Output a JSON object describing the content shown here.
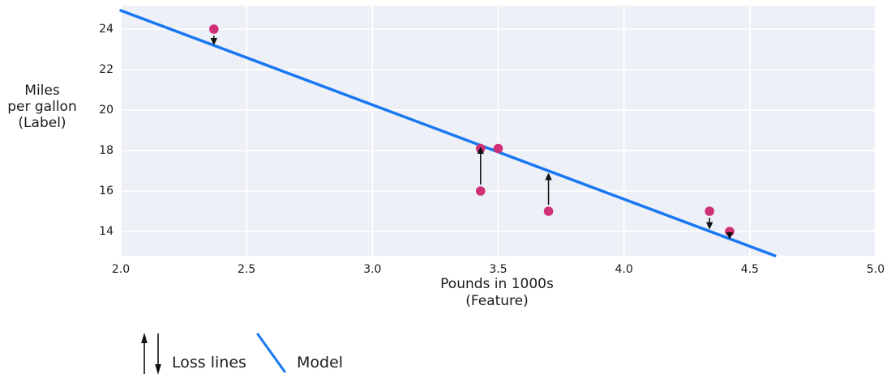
{
  "figure": {
    "ylabel_lines": [
      "Miles",
      "per gallon",
      "(Label)"
    ],
    "xlabel_lines": [
      "Pounds in 1000s",
      "(Feature)"
    ]
  },
  "legend": {
    "loss_label": "Loss lines",
    "model_label": "Model"
  },
  "colors": {
    "model_blue": "#1877f2",
    "point_pink": "#cf3076",
    "plot_bg": "#edf0f7",
    "grid": "#ffffff",
    "text": "#1b1b1b",
    "arrow": "#101010"
  },
  "chart_data": {
    "type": "scatter",
    "title": "",
    "xlabel": "Pounds in 1000s (Feature)",
    "ylabel": "Miles per gallon (Label)",
    "xlim": [
      2.0,
      5.0
    ],
    "ylim": [
      12.8,
      25.16
    ],
    "x_tick_values": [
      2.0,
      2.5,
      3.0,
      3.5,
      4.0,
      4.5,
      5.0
    ],
    "x_tick_labels": [
      "2.0",
      "2.5",
      "3.0",
      "3.5",
      "4.0",
      "4.5",
      "5.0"
    ],
    "y_tick_values": [
      14,
      16,
      18,
      20,
      22,
      24
    ],
    "y_tick_labels": [
      "14",
      "16",
      "18",
      "20",
      "22",
      "24"
    ],
    "grid": true,
    "legend_position": "below-left",
    "series": [
      {
        "name": "data points",
        "type": "scatter",
        "points": [
          [
            2.37,
            24.0
          ],
          [
            3.43,
            18.1
          ],
          [
            3.5,
            18.1
          ],
          [
            3.43,
            16.0
          ],
          [
            3.7,
            15.0
          ],
          [
            4.34,
            15.0
          ],
          [
            4.42,
            14.0
          ]
        ]
      },
      {
        "name": "Model",
        "type": "line",
        "slope": -4.66,
        "intercept": 34.25,
        "endpoints": [
          [
            2.0,
            24.92
          ],
          [
            4.6,
            12.8
          ]
        ]
      },
      {
        "name": "Loss lines",
        "type": "arrows",
        "arrows": [
          {
            "x": 2.37,
            "y_from": 24.0,
            "y_to": 23.2,
            "direction": "down"
          },
          {
            "x": 3.43,
            "y_from": 16.0,
            "y_to": 18.2,
            "direction": "up"
          },
          {
            "x": 3.7,
            "y_from": 15.0,
            "y_to": 16.9,
            "direction": "up"
          },
          {
            "x": 4.34,
            "y_from": 15.0,
            "y_to": 14.1,
            "direction": "down"
          },
          {
            "x": 4.42,
            "y_from": 14.0,
            "y_to": 13.6,
            "direction": "down"
          }
        ]
      }
    ]
  }
}
